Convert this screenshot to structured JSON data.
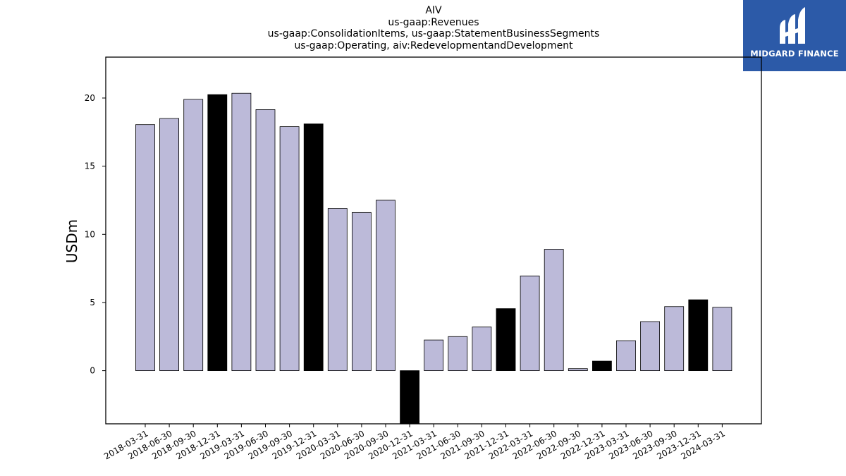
{
  "chart_data": {
    "type": "bar",
    "title": [
      "AIV",
      "us-gaap:Revenues",
      "us-gaap:ConsolidationItems, us-gaap:StatementBusinessSegments",
      "us-gaap:Operating, aiv:RedevelopmentandDevelopment"
    ],
    "ylabel": "USDm",
    "xlabel": "",
    "ylim": [
      -3.9,
      23.0
    ],
    "yticks": [
      0,
      5,
      10,
      15,
      20
    ],
    "grid": false,
    "categories": [
      "2018-03-31",
      "2018-06-30",
      "2018-09-30",
      "2018-12-31",
      "2019-03-31",
      "2019-06-30",
      "2019-09-30",
      "2019-12-31",
      "2020-03-31",
      "2020-06-30",
      "2020-09-30",
      "2020-12-31",
      "2021-03-31",
      "2021-06-30",
      "2021-09-30",
      "2021-12-31",
      "2022-03-31",
      "2022-06-30",
      "2022-09-30",
      "2022-12-31",
      "2023-03-31",
      "2023-06-30",
      "2023-09-30",
      "2023-12-31",
      "2024-03-31"
    ],
    "values": [
      18.05,
      18.5,
      19.9,
      20.25,
      20.35,
      19.15,
      17.9,
      18.1,
      11.9,
      11.6,
      12.5,
      -3.9,
      2.25,
      2.5,
      3.2,
      4.55,
      6.95,
      8.9,
      0.15,
      0.7,
      2.2,
      3.6,
      4.7,
      5.2,
      4.65
    ],
    "colors": {
      "quarter": "#bcbad9",
      "year_end": "#000000",
      "edge": "#000000"
    },
    "year_end_flags": [
      false,
      false,
      false,
      true,
      false,
      false,
      false,
      true,
      false,
      false,
      false,
      true,
      false,
      false,
      false,
      true,
      false,
      false,
      false,
      true,
      false,
      false,
      false,
      true,
      false
    ]
  },
  "logo": {
    "text": "MIDGARD FINANCE",
    "color": "#2c5aa8"
  }
}
